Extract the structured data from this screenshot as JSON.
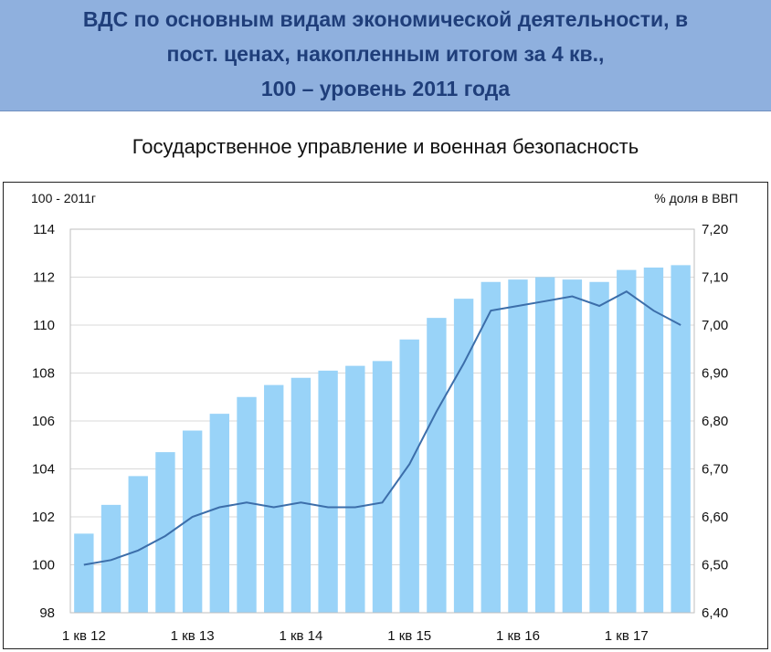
{
  "header": {
    "lines": [
      "ВДС по основным видам экономической деятельности, в",
      "пост. ценах, накопленным итогом за 4 кв.,",
      "100 – уровень 2011 года"
    ]
  },
  "chart_data": {
    "type": "bar",
    "title": "Государственное управление и военная безопасность",
    "left_axis_title": "100 - 2011г",
    "right_axis_title": "%  доля в ВВП",
    "categories": [
      "1 кв 12",
      "2 кв 12",
      "3 кв 12",
      "4 кв 12",
      "1 кв 13",
      "2 кв 13",
      "3 кв 13",
      "4 кв 13",
      "1 кв 14",
      "2 кв 14",
      "3 кв 14",
      "4 кв 14",
      "1 кв 15",
      "2 кв 15",
      "3 кв 15",
      "4 кв 15",
      "1 кв 16",
      "2 кв 16",
      "3 кв 16",
      "4 кв 16",
      "1 кв 17",
      "2 кв 17",
      "3 кв 17"
    ],
    "x_tick_labels": [
      "1 кв 12",
      "1 кв 13",
      "1 кв 14",
      "1 кв 15",
      "1 кв 16",
      "1 кв 17"
    ],
    "series": [
      {
        "axis": "left",
        "type": "bar",
        "color": "#99d3f8",
        "values": [
          101.3,
          102.5,
          103.7,
          104.7,
          105.6,
          106.3,
          107.0,
          107.5,
          107.8,
          108.1,
          108.3,
          108.5,
          109.4,
          110.3,
          111.1,
          111.8,
          111.9,
          112.0,
          111.9,
          111.8,
          112.3,
          112.4,
          112.5
        ]
      },
      {
        "axis": "right",
        "type": "line",
        "color": "#3c6eaa",
        "values": [
          6.5,
          6.51,
          6.53,
          6.56,
          6.6,
          6.62,
          6.63,
          6.62,
          6.63,
          6.62,
          6.62,
          6.63,
          6.71,
          6.82,
          6.92,
          7.03,
          7.04,
          7.05,
          7.06,
          7.04,
          7.07,
          7.03,
          7.0
        ]
      }
    ],
    "left_axis": {
      "min": 98,
      "max": 114,
      "ticks": [
        "98",
        "100",
        "102",
        "104",
        "106",
        "108",
        "110",
        "112",
        "114"
      ]
    },
    "right_axis": {
      "min": 6.4,
      "max": 7.2,
      "ticks": [
        "6,40",
        "6,50",
        "6,60",
        "6,70",
        "6,80",
        "6,90",
        "7,00",
        "7,10",
        "7,20"
      ]
    },
    "grid": "horizontal",
    "legend": "none"
  }
}
